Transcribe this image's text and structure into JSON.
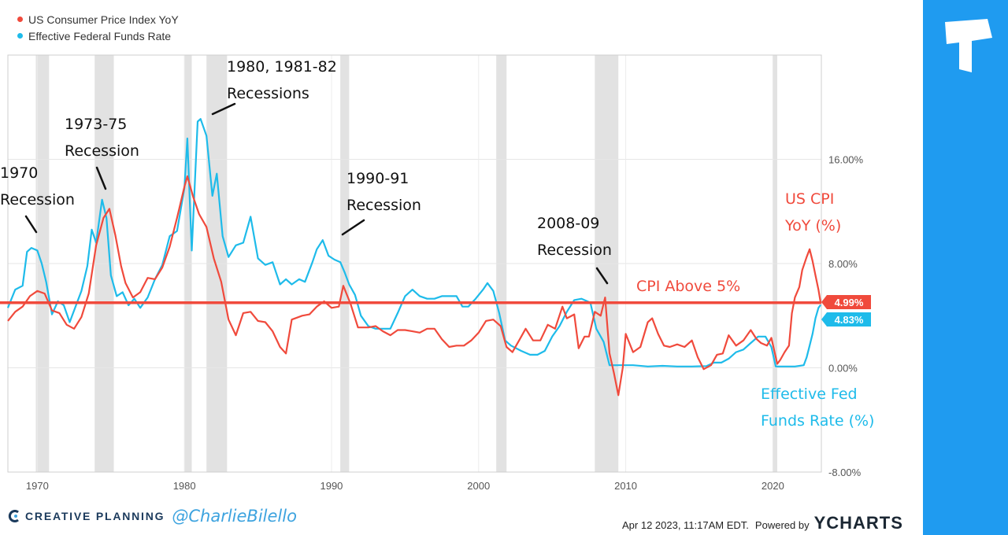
{
  "chart_data": {
    "type": "line",
    "title": "",
    "xlabel": "",
    "ylabel": "",
    "xlim": [
      1968,
      2023.3
    ],
    "ylim": [
      -8,
      24
    ],
    "x_ticks": [
      "1970",
      "1980",
      "1990",
      "2000",
      "2010",
      "2020"
    ],
    "y_ticks": [
      {
        "value": 16,
        "label": "16.00%"
      },
      {
        "value": 8,
        "label": "8.00%"
      },
      {
        "value": 0,
        "label": "0.00%"
      },
      {
        "value": -8,
        "label": "-8.00%"
      }
    ],
    "legend_position": "top-left",
    "series": [
      {
        "name": "US Consumer Price Index YoY",
        "color": "#f04a3c",
        "points": [
          [
            1968.0,
            3.6
          ],
          [
            1968.5,
            4.3
          ],
          [
            1969.0,
            4.7
          ],
          [
            1969.5,
            5.5
          ],
          [
            1970.0,
            5.9
          ],
          [
            1970.5,
            5.7
          ],
          [
            1971.0,
            4.4
          ],
          [
            1971.5,
            4.2
          ],
          [
            1972.0,
            3.3
          ],
          [
            1972.5,
            3.0
          ],
          [
            1973.0,
            3.9
          ],
          [
            1973.5,
            5.7
          ],
          [
            1974.0,
            9.4
          ],
          [
            1974.5,
            11.5
          ],
          [
            1974.9,
            12.2
          ],
          [
            1975.3,
            10.2
          ],
          [
            1975.7,
            7.8
          ],
          [
            1976.0,
            6.5
          ],
          [
            1976.5,
            5.4
          ],
          [
            1977.0,
            5.8
          ],
          [
            1977.5,
            6.9
          ],
          [
            1978.0,
            6.8
          ],
          [
            1978.5,
            7.7
          ],
          [
            1979.0,
            9.3
          ],
          [
            1979.5,
            11.5
          ],
          [
            1980.0,
            13.9
          ],
          [
            1980.2,
            14.7
          ],
          [
            1980.6,
            13.1
          ],
          [
            1981.0,
            11.8
          ],
          [
            1981.5,
            10.8
          ],
          [
            1982.0,
            8.4
          ],
          [
            1982.5,
            6.6
          ],
          [
            1983.0,
            3.7
          ],
          [
            1983.5,
            2.5
          ],
          [
            1984.0,
            4.2
          ],
          [
            1984.5,
            4.3
          ],
          [
            1985.0,
            3.6
          ],
          [
            1985.5,
            3.5
          ],
          [
            1986.0,
            2.8
          ],
          [
            1986.5,
            1.6
          ],
          [
            1986.9,
            1.1
          ],
          [
            1987.3,
            3.7
          ],
          [
            1988.0,
            4.0
          ],
          [
            1988.5,
            4.1
          ],
          [
            1989.0,
            4.7
          ],
          [
            1989.5,
            5.1
          ],
          [
            1990.0,
            4.6
          ],
          [
            1990.5,
            4.7
          ],
          [
            1990.8,
            6.3
          ],
          [
            1991.3,
            4.9
          ],
          [
            1991.8,
            3.1
          ],
          [
            1992.5,
            3.1
          ],
          [
            1993.0,
            3.2
          ],
          [
            1993.5,
            2.8
          ],
          [
            1994.0,
            2.5
          ],
          [
            1994.5,
            2.9
          ],
          [
            1995.0,
            2.9
          ],
          [
            1995.5,
            2.8
          ],
          [
            1996.0,
            2.7
          ],
          [
            1996.5,
            3.0
          ],
          [
            1997.0,
            3.0
          ],
          [
            1997.5,
            2.2
          ],
          [
            1998.0,
            1.6
          ],
          [
            1998.5,
            1.7
          ],
          [
            1999.0,
            1.7
          ],
          [
            1999.5,
            2.1
          ],
          [
            2000.0,
            2.7
          ],
          [
            2000.5,
            3.6
          ],
          [
            2001.0,
            3.7
          ],
          [
            2001.5,
            3.2
          ],
          [
            2001.9,
            1.6
          ],
          [
            2002.3,
            1.2
          ],
          [
            2002.8,
            2.2
          ],
          [
            2003.2,
            3.0
          ],
          [
            2003.7,
            2.1
          ],
          [
            2004.2,
            2.1
          ],
          [
            2004.7,
            3.3
          ],
          [
            2005.2,
            3.0
          ],
          [
            2005.7,
            4.7
          ],
          [
            2006.0,
            3.8
          ],
          [
            2006.5,
            4.1
          ],
          [
            2006.8,
            1.5
          ],
          [
            2007.2,
            2.4
          ],
          [
            2007.5,
            2.4
          ],
          [
            2007.9,
            4.3
          ],
          [
            2008.3,
            4.0
          ],
          [
            2008.6,
            5.4
          ],
          [
            2008.9,
            1.1
          ],
          [
            2009.2,
            -0.4
          ],
          [
            2009.5,
            -2.1
          ],
          [
            2009.8,
            0.0
          ],
          [
            2010.0,
            2.6
          ],
          [
            2010.5,
            1.2
          ],
          [
            2011.0,
            1.6
          ],
          [
            2011.5,
            3.5
          ],
          [
            2011.8,
            3.8
          ],
          [
            2012.2,
            2.6
          ],
          [
            2012.6,
            1.7
          ],
          [
            2013.0,
            1.6
          ],
          [
            2013.5,
            1.8
          ],
          [
            2014.0,
            1.6
          ],
          [
            2014.5,
            2.1
          ],
          [
            2014.9,
            0.8
          ],
          [
            2015.3,
            -0.1
          ],
          [
            2015.8,
            0.2
          ],
          [
            2016.2,
            1.0
          ],
          [
            2016.6,
            1.1
          ],
          [
            2017.0,
            2.5
          ],
          [
            2017.5,
            1.7
          ],
          [
            2018.0,
            2.1
          ],
          [
            2018.5,
            2.9
          ],
          [
            2018.9,
            2.2
          ],
          [
            2019.2,
            1.9
          ],
          [
            2019.6,
            1.7
          ],
          [
            2019.9,
            2.3
          ],
          [
            2020.3,
            0.3
          ],
          [
            2020.5,
            0.6
          ],
          [
            2020.8,
            1.2
          ],
          [
            2021.1,
            1.7
          ],
          [
            2021.3,
            4.2
          ],
          [
            2021.5,
            5.4
          ],
          [
            2021.8,
            6.2
          ],
          [
            2022.0,
            7.5
          ],
          [
            2022.3,
            8.5
          ],
          [
            2022.5,
            9.1
          ],
          [
            2022.7,
            8.2
          ],
          [
            2022.9,
            7.1
          ],
          [
            2023.1,
            6.0
          ],
          [
            2023.25,
            4.99
          ]
        ]
      },
      {
        "name": "Effective Federal Funds Rate",
        "color": "#1ebbea",
        "points": [
          [
            1968.0,
            4.6
          ],
          [
            1968.5,
            6.0
          ],
          [
            1969.0,
            6.3
          ],
          [
            1969.3,
            8.9
          ],
          [
            1969.6,
            9.2
          ],
          [
            1970.0,
            9.0
          ],
          [
            1970.3,
            8.0
          ],
          [
            1970.6,
            6.6
          ],
          [
            1971.0,
            4.1
          ],
          [
            1971.4,
            5.1
          ],
          [
            1971.8,
            4.8
          ],
          [
            1972.2,
            3.5
          ],
          [
            1972.6,
            4.7
          ],
          [
            1973.0,
            5.9
          ],
          [
            1973.4,
            7.8
          ],
          [
            1973.7,
            10.6
          ],
          [
            1974.0,
            9.6
          ],
          [
            1974.4,
            12.9
          ],
          [
            1974.7,
            11.5
          ],
          [
            1975.0,
            7.1
          ],
          [
            1975.4,
            5.5
          ],
          [
            1975.8,
            5.8
          ],
          [
            1976.2,
            4.8
          ],
          [
            1976.6,
            5.3
          ],
          [
            1977.0,
            4.6
          ],
          [
            1977.5,
            5.4
          ],
          [
            1978.0,
            6.8
          ],
          [
            1978.5,
            7.9
          ],
          [
            1979.0,
            10.1
          ],
          [
            1979.5,
            10.5
          ],
          [
            1980.0,
            13.8
          ],
          [
            1980.2,
            17.6
          ],
          [
            1980.5,
            9.0
          ],
          [
            1980.9,
            18.9
          ],
          [
            1981.1,
            19.1
          ],
          [
            1981.5,
            17.8
          ],
          [
            1981.9,
            13.2
          ],
          [
            1982.2,
            14.9
          ],
          [
            1982.6,
            10.1
          ],
          [
            1983.0,
            8.5
          ],
          [
            1983.5,
            9.4
          ],
          [
            1984.0,
            9.6
          ],
          [
            1984.5,
            11.6
          ],
          [
            1985.0,
            8.4
          ],
          [
            1985.5,
            7.9
          ],
          [
            1986.0,
            8.1
          ],
          [
            1986.5,
            6.4
          ],
          [
            1986.9,
            6.8
          ],
          [
            1987.3,
            6.4
          ],
          [
            1987.8,
            6.8
          ],
          [
            1988.2,
            6.6
          ],
          [
            1988.7,
            8.1
          ],
          [
            1989.0,
            9.1
          ],
          [
            1989.4,
            9.8
          ],
          [
            1989.8,
            8.6
          ],
          [
            1990.2,
            8.3
          ],
          [
            1990.6,
            8.1
          ],
          [
            1990.9,
            7.3
          ],
          [
            1991.2,
            6.4
          ],
          [
            1991.6,
            5.6
          ],
          [
            1992.0,
            4.0
          ],
          [
            1992.5,
            3.2
          ],
          [
            1993.0,
            3.0
          ],
          [
            1993.5,
            3.0
          ],
          [
            1994.0,
            3.0
          ],
          [
            1994.5,
            4.2
          ],
          [
            1995.0,
            5.5
          ],
          [
            1995.5,
            6.0
          ],
          [
            1996.0,
            5.5
          ],
          [
            1996.5,
            5.3
          ],
          [
            1997.0,
            5.3
          ],
          [
            1997.5,
            5.5
          ],
          [
            1998.0,
            5.5
          ],
          [
            1998.5,
            5.5
          ],
          [
            1998.9,
            4.7
          ],
          [
            1999.3,
            4.7
          ],
          [
            1999.8,
            5.3
          ],
          [
            2000.3,
            6.0
          ],
          [
            2000.6,
            6.5
          ],
          [
            2001.0,
            5.9
          ],
          [
            2001.4,
            4.2
          ],
          [
            2001.8,
            2.1
          ],
          [
            2002.2,
            1.7
          ],
          [
            2002.9,
            1.3
          ],
          [
            2003.5,
            1.0
          ],
          [
            2004.0,
            1.0
          ],
          [
            2004.5,
            1.3
          ],
          [
            2005.0,
            2.4
          ],
          [
            2005.5,
            3.2
          ],
          [
            2006.0,
            4.3
          ],
          [
            2006.5,
            5.2
          ],
          [
            2007.0,
            5.3
          ],
          [
            2007.6,
            5.0
          ],
          [
            2008.0,
            3.0
          ],
          [
            2008.5,
            2.0
          ],
          [
            2008.9,
            0.2
          ],
          [
            2009.5,
            0.2
          ],
          [
            2010.5,
            0.2
          ],
          [
            2011.5,
            0.1
          ],
          [
            2012.5,
            0.15
          ],
          [
            2013.5,
            0.1
          ],
          [
            2014.5,
            0.1
          ],
          [
            2015.5,
            0.13
          ],
          [
            2016.0,
            0.4
          ],
          [
            2016.5,
            0.4
          ],
          [
            2017.0,
            0.7
          ],
          [
            2017.5,
            1.2
          ],
          [
            2018.0,
            1.4
          ],
          [
            2018.5,
            1.9
          ],
          [
            2019.0,
            2.4
          ],
          [
            2019.5,
            2.4
          ],
          [
            2019.9,
            1.6
          ],
          [
            2020.2,
            0.1
          ],
          [
            2020.6,
            0.1
          ],
          [
            2021.5,
            0.1
          ],
          [
            2022.1,
            0.2
          ],
          [
            2022.3,
            0.8
          ],
          [
            2022.5,
            1.7
          ],
          [
            2022.7,
            2.6
          ],
          [
            2022.9,
            3.8
          ],
          [
            2023.1,
            4.6
          ],
          [
            2023.25,
            4.83
          ]
        ]
      }
    ],
    "recessions": [
      [
        1969.9,
        1970.8
      ],
      [
        1973.9,
        1975.2
      ],
      [
        1980.0,
        1980.5
      ],
      [
        1981.5,
        1982.9
      ],
      [
        1990.6,
        1991.2
      ],
      [
        2001.2,
        2001.9
      ],
      [
        2007.9,
        2009.5
      ],
      [
        2020.0,
        2020.3
      ]
    ],
    "reference_line": {
      "value": 5,
      "label": "CPI Above 5%",
      "color": "#f04a3c"
    },
    "end_labels": [
      {
        "value": 4.99,
        "label": "4.99%",
        "color": "#f04a3c"
      },
      {
        "value": 4.83,
        "label": "4.83%",
        "color": "#1ebbea"
      }
    ],
    "annotations": [
      {
        "id": "ann-1970",
        "lines": [
          "1970",
          "Recession"
        ],
        "color": "#111111"
      },
      {
        "id": "ann-1973",
        "lines": [
          "1973-75",
          "Recession"
        ],
        "color": "#111111"
      },
      {
        "id": "ann-1980",
        "lines": [
          "1980, 1981-82",
          "Recessions"
        ],
        "color": "#111111"
      },
      {
        "id": "ann-1990",
        "lines": [
          "1990-91",
          "Recession"
        ],
        "color": "#111111"
      },
      {
        "id": "ann-2008",
        "lines": [
          "2008-09",
          "Recession"
        ],
        "color": "#111111"
      },
      {
        "id": "ann-cpi",
        "lines": [
          "US CPI",
          "YoY (%)"
        ],
        "color": "#f04a3c"
      },
      {
        "id": "ann-fed",
        "lines": [
          "Effective Fed",
          "Funds Rate (%)"
        ],
        "color": "#1ebbea"
      }
    ]
  },
  "legend": [
    {
      "label": "US Consumer Price Index YoY",
      "color": "#f04a3c"
    },
    {
      "label": "Effective Federal Funds Rate",
      "color": "#1ebbea"
    }
  ],
  "footer": {
    "brand": "CREATIVE PLANNING",
    "handle": "@CharlieBilello",
    "timestamp": "Apr 12 2023, 11:17AM EDT.",
    "powered_by": "Powered by",
    "ycharts": "YCHARTS"
  },
  "colors": {
    "panel": "#1f9bf0",
    "brand_dark": "#1b3a5c"
  }
}
